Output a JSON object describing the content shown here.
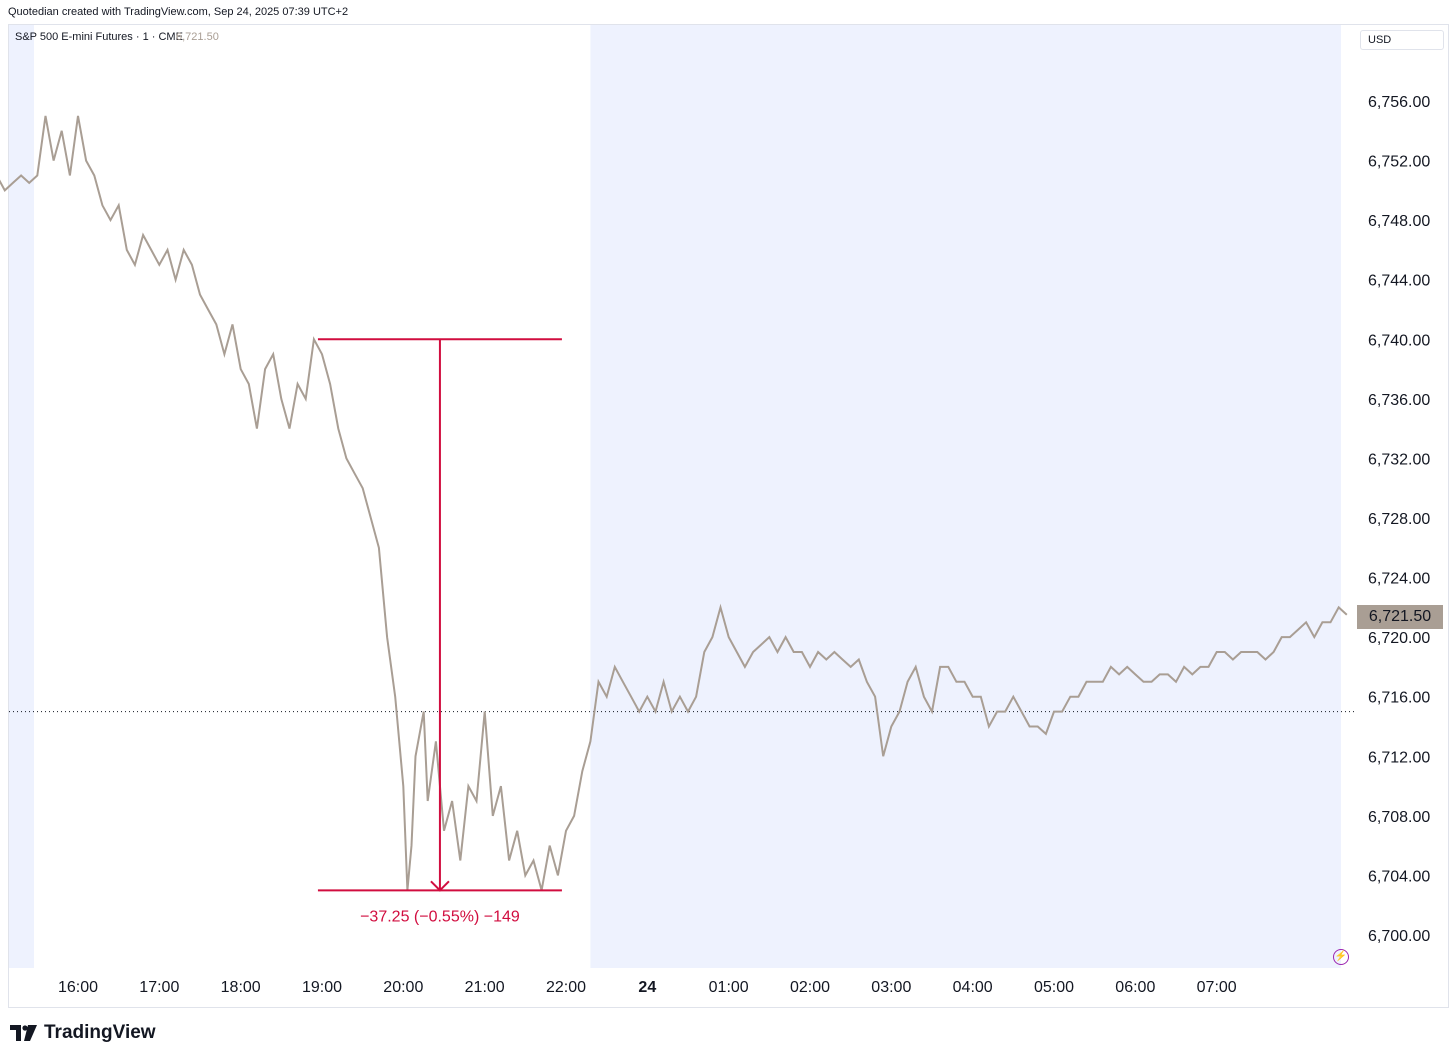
{
  "header": {
    "attribution": "Quotedian created with TradingView.com, Sep 24, 2025 07:39 UTC+2"
  },
  "legend": {
    "symbol": "S&P 500 E-mini Futures · 1 · CME",
    "last_value": "6,721.50"
  },
  "currency": "USD",
  "price_badge": "6,721.50",
  "measure_label": "−37.25 (−0.55%) −149",
  "footer": {
    "brand": "TradingView"
  },
  "icons": {
    "lightning": "lightning-icon",
    "logo": "tradingview-logo-icon"
  },
  "colors": {
    "line": "#a99e94",
    "measure": "#d10d3f",
    "session_shade": "#eef2fe",
    "badge": "#a99e94"
  },
  "chart_data": {
    "type": "line",
    "y_range": [
      6698,
      6760
    ],
    "y_ticks": [
      "6,756.00",
      "6,752.00",
      "6,748.00",
      "6,744.00",
      "6,740.00",
      "6,736.00",
      "6,732.00",
      "6,728.00",
      "6,724.00",
      "6,720.00",
      "6,716.00",
      "6,712.00",
      "6,708.00",
      "6,704.00",
      "6,700.00"
    ],
    "x_ticks": [
      "16:00",
      "17:00",
      "18:00",
      "19:00",
      "20:00",
      "21:00",
      "22:00",
      "24",
      "01:00",
      "02:00",
      "03:00",
      "04:00",
      "05:00",
      "06:00",
      "07:00"
    ],
    "x_range_hours": [
      15.0,
      31.65
    ],
    "reference_level": 6715.0,
    "measure": {
      "from_hour": 18.95,
      "to_hour": 21.95,
      "high": 6740.0,
      "low": 6703.0
    },
    "series": [
      {
        "values": [
          [
            15.0,
            6751
          ],
          [
            15.1,
            6750
          ],
          [
            15.2,
            6750.5
          ],
          [
            15.3,
            6751
          ],
          [
            15.4,
            6750.5
          ],
          [
            15.5,
            6751
          ],
          [
            15.6,
            6755
          ],
          [
            15.7,
            6752
          ],
          [
            15.8,
            6754
          ],
          [
            15.9,
            6751
          ],
          [
            16.0,
            6755
          ],
          [
            16.1,
            6752
          ],
          [
            16.2,
            6751
          ],
          [
            16.3,
            6749
          ],
          [
            16.4,
            6748
          ],
          [
            16.5,
            6749
          ],
          [
            16.6,
            6746
          ],
          [
            16.7,
            6745
          ],
          [
            16.8,
            6747
          ],
          [
            16.9,
            6746
          ],
          [
            17.0,
            6745
          ],
          [
            17.1,
            6746
          ],
          [
            17.2,
            6744
          ],
          [
            17.3,
            6746
          ],
          [
            17.4,
            6745
          ],
          [
            17.5,
            6743
          ],
          [
            17.6,
            6742
          ],
          [
            17.7,
            6741
          ],
          [
            17.8,
            6739
          ],
          [
            17.9,
            6741
          ],
          [
            18.0,
            6738
          ],
          [
            18.1,
            6737
          ],
          [
            18.2,
            6734
          ],
          [
            18.3,
            6738
          ],
          [
            18.4,
            6739
          ],
          [
            18.5,
            6736
          ],
          [
            18.6,
            6734
          ],
          [
            18.7,
            6737
          ],
          [
            18.8,
            6736
          ],
          [
            18.9,
            6740
          ],
          [
            19.0,
            6739
          ],
          [
            19.1,
            6737
          ],
          [
            19.2,
            6734
          ],
          [
            19.3,
            6732
          ],
          [
            19.4,
            6731
          ],
          [
            19.5,
            6730
          ],
          [
            19.6,
            6728
          ],
          [
            19.7,
            6726
          ],
          [
            19.8,
            6720
          ],
          [
            19.9,
            6716
          ],
          [
            20.0,
            6710
          ],
          [
            20.05,
            6703
          ],
          [
            20.1,
            6706
          ],
          [
            20.15,
            6712
          ],
          [
            20.25,
            6715
          ],
          [
            20.3,
            6709
          ],
          [
            20.4,
            6713
          ],
          [
            20.5,
            6707
          ],
          [
            20.6,
            6709
          ],
          [
            20.7,
            6705
          ],
          [
            20.8,
            6710
          ],
          [
            20.9,
            6709
          ],
          [
            21.0,
            6715
          ],
          [
            21.1,
            6708
          ],
          [
            21.2,
            6710
          ],
          [
            21.3,
            6705
          ],
          [
            21.4,
            6707
          ],
          [
            21.5,
            6704
          ],
          [
            21.6,
            6705
          ],
          [
            21.7,
            6703
          ],
          [
            21.8,
            6706
          ],
          [
            21.9,
            6704
          ],
          [
            22.0,
            6707
          ],
          [
            22.1,
            6708
          ],
          [
            22.2,
            6711
          ],
          [
            22.3,
            6713
          ],
          [
            22.4,
            6717
          ],
          [
            22.5,
            6716
          ],
          [
            22.6,
            6718
          ],
          [
            22.7,
            6717
          ],
          [
            22.8,
            6716
          ],
          [
            22.9,
            6715
          ],
          [
            23.0,
            6716
          ],
          [
            23.1,
            6715
          ],
          [
            23.2,
            6717
          ],
          [
            23.3,
            6715
          ],
          [
            23.4,
            6716
          ],
          [
            23.5,
            6715
          ],
          [
            23.6,
            6716
          ],
          [
            23.7,
            6719
          ],
          [
            23.8,
            6720
          ],
          [
            23.9,
            6722
          ],
          [
            24.0,
            6720
          ],
          [
            24.1,
            6719
          ],
          [
            24.2,
            6718
          ],
          [
            24.3,
            6719
          ],
          [
            24.4,
            6719.5
          ],
          [
            24.5,
            6720
          ],
          [
            24.6,
            6719
          ],
          [
            24.7,
            6720
          ],
          [
            24.8,
            6719
          ],
          [
            24.9,
            6719
          ],
          [
            25.0,
            6718
          ],
          [
            25.1,
            6719
          ],
          [
            25.2,
            6718.5
          ],
          [
            25.3,
            6719
          ],
          [
            25.4,
            6718.5
          ],
          [
            25.5,
            6718
          ],
          [
            25.6,
            6718.5
          ],
          [
            25.7,
            6717
          ],
          [
            25.8,
            6716
          ],
          [
            25.9,
            6712
          ],
          [
            26.0,
            6714
          ],
          [
            26.1,
            6715
          ],
          [
            26.2,
            6717
          ],
          [
            26.3,
            6718
          ],
          [
            26.4,
            6716
          ],
          [
            26.5,
            6715
          ],
          [
            26.6,
            6718
          ],
          [
            26.7,
            6718
          ],
          [
            26.8,
            6717
          ],
          [
            26.9,
            6717
          ],
          [
            27.0,
            6716
          ],
          [
            27.1,
            6716
          ],
          [
            27.2,
            6714
          ],
          [
            27.3,
            6715
          ],
          [
            27.4,
            6715
          ],
          [
            27.5,
            6716
          ],
          [
            27.6,
            6715
          ],
          [
            27.7,
            6714
          ],
          [
            27.8,
            6714
          ],
          [
            27.9,
            6713.5
          ],
          [
            28.0,
            6715
          ],
          [
            28.1,
            6715
          ],
          [
            28.2,
            6716
          ],
          [
            28.3,
            6716
          ],
          [
            28.4,
            6717
          ],
          [
            28.5,
            6717
          ],
          [
            28.6,
            6717
          ],
          [
            28.7,
            6718
          ],
          [
            28.8,
            6717.5
          ],
          [
            28.9,
            6718
          ],
          [
            29.0,
            6717.5
          ],
          [
            29.1,
            6717
          ],
          [
            29.2,
            6717
          ],
          [
            29.3,
            6717.5
          ],
          [
            29.4,
            6717.5
          ],
          [
            29.5,
            6717
          ],
          [
            29.6,
            6718
          ],
          [
            29.7,
            6717.5
          ],
          [
            29.8,
            6718
          ],
          [
            29.9,
            6718
          ],
          [
            30.0,
            6719
          ],
          [
            30.1,
            6719
          ],
          [
            30.2,
            6718.5
          ],
          [
            30.3,
            6719
          ],
          [
            30.4,
            6719
          ],
          [
            30.5,
            6719
          ],
          [
            30.6,
            6718.5
          ],
          [
            30.7,
            6719
          ],
          [
            30.8,
            6720
          ],
          [
            30.9,
            6720
          ],
          [
            31.0,
            6720.5
          ],
          [
            31.1,
            6721
          ],
          [
            31.2,
            6720
          ],
          [
            31.3,
            6721
          ],
          [
            31.4,
            6721
          ],
          [
            31.5,
            6722
          ],
          [
            31.6,
            6721.5
          ]
        ]
      }
    ]
  }
}
